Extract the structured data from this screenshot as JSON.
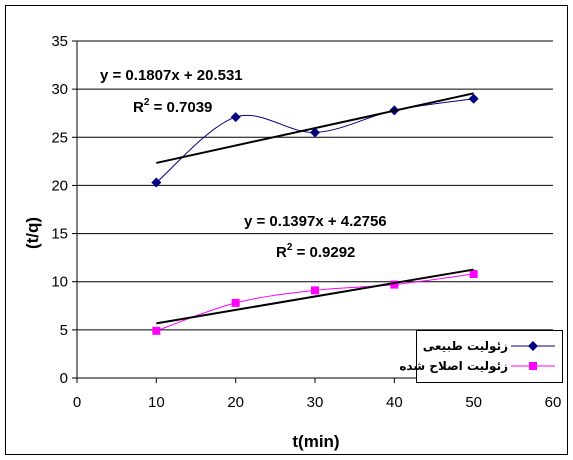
{
  "chart_data": {
    "type": "scatter",
    "title": "",
    "xlabel": "t(min)",
    "ylabel": "(t/q)",
    "xlim": [
      0,
      60
    ],
    "ylim": [
      0,
      35
    ],
    "xticks": [
      0,
      10,
      20,
      30,
      40,
      50,
      60
    ],
    "yticks": [
      0,
      5,
      10,
      15,
      20,
      25,
      30,
      35
    ],
    "grid": "horizontal",
    "legend_position": "bottom-right",
    "series": [
      {
        "name": "زئولیت طبیعی",
        "color": "#000080",
        "marker": "diamond",
        "x": [
          10,
          20,
          30,
          40,
          50
        ],
        "y": [
          20.3,
          27.1,
          25.5,
          27.8,
          29.0
        ],
        "trendline": {
          "slope": 0.1807,
          "intercept": 20.531,
          "equation": "y = 0.1807x + 20.531",
          "r2_label": "R",
          "r2_value": " = 0.7039"
        }
      },
      {
        "name": "زئولیت اصلاح شده",
        "color": "#ff00ff",
        "marker": "square",
        "x": [
          10,
          20,
          30,
          40,
          50
        ],
        "y": [
          4.9,
          7.8,
          9.1,
          9.7,
          10.8
        ],
        "trendline": {
          "slope": 0.1397,
          "intercept": 4.2756,
          "equation": "y = 0.1397x + 4.2756",
          "r2_label": "R",
          "r2_value": " = 0.9292"
        }
      }
    ]
  }
}
